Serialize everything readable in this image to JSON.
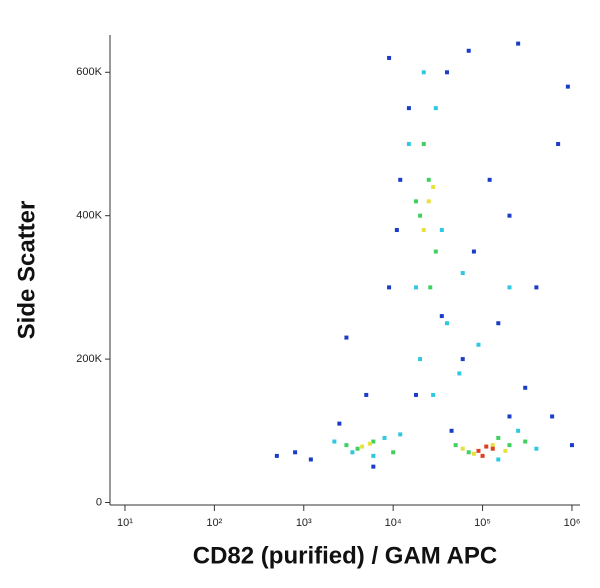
{
  "chart_data": {
    "type": "scatter",
    "x_label": "CD82 (purified) / GAM APC",
    "y_label": "Side Scatter",
    "xscale": "log",
    "xlim": [
      6.8,
      1230000
    ],
    "ylim": [
      -3500,
      652000
    ],
    "xticks": [
      {
        "value": 10,
        "label": "10¹"
      },
      {
        "value": 100,
        "label": "10²"
      },
      {
        "value": 1000,
        "label": "10³"
      },
      {
        "value": 10000,
        "label": "10⁴"
      },
      {
        "value": 100000,
        "label": "10⁵"
      },
      {
        "value": 1000000,
        "label": "10⁶"
      }
    ],
    "yticks": [
      0,
      {
        "value": 200000,
        "label": "200K"
      },
      {
        "value": 400000,
        "label": "400K"
      },
      {
        "value": 600000,
        "label": "600K"
      }
    ],
    "series": [
      {
        "color": "#1a3cc8",
        "x": [
          1200,
          2500,
          800,
          5000,
          9000,
          12000,
          15000,
          40000,
          60000,
          80000,
          150000,
          200000,
          300000,
          400000,
          700000,
          1000000,
          500,
          3000,
          6000,
          9000,
          70000,
          250000,
          120000,
          18000,
          45000,
          11000,
          35000,
          200000,
          600000,
          900000
        ],
        "values": [
          60000,
          110000,
          70000,
          150000,
          300000,
          450000,
          550000,
          600000,
          200000,
          350000,
          250000,
          120000,
          160000,
          300000,
          500000,
          80000,
          65000,
          230000,
          50000,
          620000,
          630000,
          640000,
          450000,
          150000,
          100000,
          380000,
          260000,
          400000,
          120000,
          580000
        ]
      },
      {
        "color": "#30c8e0",
        "x": [
          2200,
          3500,
          8000,
          15000,
          18000,
          22000,
          30000,
          40000,
          55000,
          90000,
          150000,
          250000,
          400000,
          20000,
          28000,
          35000,
          60000,
          12000,
          6000,
          200000
        ],
        "values": [
          85000,
          70000,
          90000,
          500000,
          300000,
          600000,
          550000,
          250000,
          180000,
          220000,
          60000,
          100000,
          75000,
          200000,
          150000,
          380000,
          320000,
          95000,
          65000,
          300000
        ]
      },
      {
        "color": "#40d060",
        "x": [
          3000,
          4000,
          6000,
          10000,
          20000,
          25000,
          30000,
          22000,
          26000,
          18000,
          50000,
          70000,
          150000,
          200000,
          300000
        ],
        "values": [
          80000,
          75000,
          85000,
          70000,
          400000,
          450000,
          350000,
          500000,
          300000,
          420000,
          80000,
          70000,
          90000,
          80000,
          85000
        ]
      },
      {
        "color": "#e8e040",
        "x": [
          4500,
          5500,
          25000,
          22000,
          28000,
          60000,
          80000,
          130000,
          180000
        ],
        "values": [
          78000,
          82000,
          420000,
          380000,
          440000,
          75000,
          68000,
          80000,
          72000
        ]
      },
      {
        "color": "#e04020",
        "x": [
          90000,
          110000,
          100000,
          130000
        ],
        "values": [
          72000,
          78000,
          65000,
          75000
        ]
      }
    ]
  }
}
